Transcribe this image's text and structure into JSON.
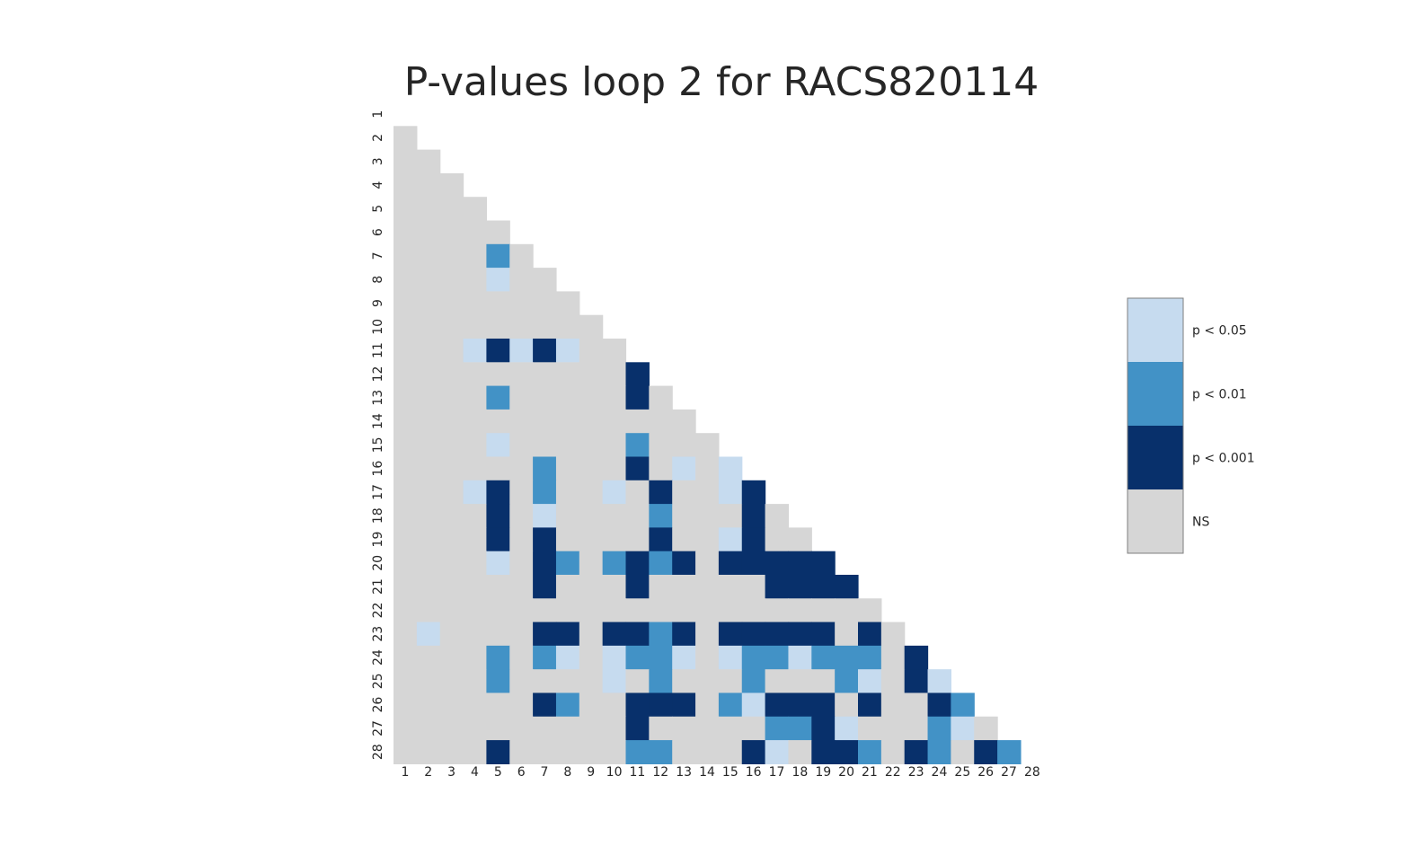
{
  "chart_data": {
    "type": "heatmap",
    "title": "P-values loop 2 for RACS820114",
    "xlabel": "",
    "ylabel": "",
    "x_tick_labels": [
      "1",
      "2",
      "3",
      "4",
      "5",
      "6",
      "7",
      "8",
      "9",
      "10",
      "11",
      "12",
      "13",
      "14",
      "15",
      "16",
      "17",
      "18",
      "19",
      "20",
      "21",
      "22",
      "23",
      "24",
      "25",
      "26",
      "27",
      "28"
    ],
    "y_tick_labels": [
      "1",
      "2",
      "3",
      "4",
      "5",
      "6",
      "7",
      "8",
      "9",
      "10",
      "11",
      "12",
      "13",
      "14",
      "15",
      "16",
      "17",
      "18",
      "19",
      "20",
      "21",
      "22",
      "23",
      "24",
      "25",
      "26",
      "27",
      "28"
    ],
    "mask": "lower-triangle (row > column), diagonal and upper triangle empty",
    "grid": false,
    "categories": [
      {
        "code": 0,
        "label": "NS",
        "color": "#d6d6d6"
      },
      {
        "code": 1,
        "label": "p < 0.001",
        "color": "#08306b"
      },
      {
        "code": 2,
        "label": "p < 0.01",
        "color": "#4292c6"
      },
      {
        "code": 3,
        "label": "p < 0.05",
        "color": "#c6dbef"
      }
    ],
    "legend": {
      "placement": "right",
      "entries": [
        "p < 0.05",
        "p < 0.01",
        "p < 0.001",
        "NS"
      ]
    },
    "cells": [
      [
        7,
        5,
        2
      ],
      [
        8,
        5,
        3
      ],
      [
        11,
        4,
        3
      ],
      [
        11,
        5,
        1
      ],
      [
        11,
        6,
        3
      ],
      [
        11,
        7,
        1
      ],
      [
        11,
        8,
        3
      ],
      [
        12,
        11,
        1
      ],
      [
        13,
        5,
        2
      ],
      [
        13,
        11,
        1
      ],
      [
        15,
        5,
        3
      ],
      [
        15,
        11,
        2
      ],
      [
        16,
        7,
        2
      ],
      [
        16,
        11,
        1
      ],
      [
        16,
        13,
        3
      ],
      [
        16,
        15,
        3
      ],
      [
        17,
        4,
        3
      ],
      [
        17,
        5,
        1
      ],
      [
        17,
        7,
        2
      ],
      [
        17,
        10,
        3
      ],
      [
        17,
        12,
        1
      ],
      [
        17,
        15,
        3
      ],
      [
        17,
        16,
        1
      ],
      [
        18,
        5,
        1
      ],
      [
        18,
        7,
        3
      ],
      [
        18,
        12,
        2
      ],
      [
        18,
        16,
        1
      ],
      [
        19,
        5,
        1
      ],
      [
        19,
        7,
        1
      ],
      [
        19,
        12,
        1
      ],
      [
        19,
        15,
        3
      ],
      [
        19,
        16,
        1
      ],
      [
        20,
        5,
        3
      ],
      [
        20,
        7,
        1
      ],
      [
        20,
        8,
        2
      ],
      [
        20,
        10,
        2
      ],
      [
        20,
        11,
        1
      ],
      [
        20,
        12,
        2
      ],
      [
        20,
        13,
        1
      ],
      [
        20,
        15,
        1
      ],
      [
        20,
        16,
        1
      ],
      [
        20,
        17,
        1
      ],
      [
        20,
        18,
        1
      ],
      [
        20,
        19,
        1
      ],
      [
        21,
        7,
        1
      ],
      [
        21,
        11,
        1
      ],
      [
        21,
        17,
        1
      ],
      [
        21,
        18,
        1
      ],
      [
        21,
        19,
        1
      ],
      [
        21,
        20,
        1
      ],
      [
        23,
        2,
        3
      ],
      [
        23,
        7,
        1
      ],
      [
        23,
        8,
        1
      ],
      [
        23,
        10,
        1
      ],
      [
        23,
        11,
        1
      ],
      [
        23,
        12,
        2
      ],
      [
        23,
        13,
        1
      ],
      [
        23,
        15,
        1
      ],
      [
        23,
        16,
        1
      ],
      [
        23,
        17,
        1
      ],
      [
        23,
        18,
        1
      ],
      [
        23,
        19,
        1
      ],
      [
        23,
        21,
        1
      ],
      [
        24,
        5,
        2
      ],
      [
        24,
        7,
        2
      ],
      [
        24,
        8,
        3
      ],
      [
        24,
        10,
        3
      ],
      [
        24,
        11,
        2
      ],
      [
        24,
        12,
        2
      ],
      [
        24,
        13,
        3
      ],
      [
        24,
        15,
        3
      ],
      [
        24,
        16,
        2
      ],
      [
        24,
        17,
        2
      ],
      [
        24,
        18,
        3
      ],
      [
        24,
        19,
        2
      ],
      [
        24,
        20,
        2
      ],
      [
        24,
        21,
        2
      ],
      [
        24,
        23,
        1
      ],
      [
        25,
        5,
        2
      ],
      [
        25,
        10,
        3
      ],
      [
        25,
        12,
        2
      ],
      [
        25,
        16,
        2
      ],
      [
        25,
        20,
        2
      ],
      [
        25,
        21,
        3
      ],
      [
        25,
        23,
        1
      ],
      [
        25,
        24,
        3
      ],
      [
        26,
        7,
        1
      ],
      [
        26,
        8,
        2
      ],
      [
        26,
        11,
        1
      ],
      [
        26,
        12,
        1
      ],
      [
        26,
        13,
        1
      ],
      [
        26,
        15,
        2
      ],
      [
        26,
        16,
        3
      ],
      [
        26,
        17,
        1
      ],
      [
        26,
        18,
        1
      ],
      [
        26,
        19,
        1
      ],
      [
        26,
        21,
        1
      ],
      [
        26,
        24,
        1
      ],
      [
        26,
        25,
        2
      ],
      [
        27,
        11,
        1
      ],
      [
        27,
        17,
        2
      ],
      [
        27,
        18,
        2
      ],
      [
        27,
        19,
        1
      ],
      [
        27,
        20,
        3
      ],
      [
        27,
        24,
        2
      ],
      [
        27,
        25,
        3
      ],
      [
        28,
        5,
        1
      ],
      [
        28,
        11,
        2
      ],
      [
        28,
        12,
        2
      ],
      [
        28,
        16,
        1
      ],
      [
        28,
        17,
        3
      ],
      [
        28,
        19,
        1
      ],
      [
        28,
        20,
        1
      ],
      [
        28,
        21,
        2
      ],
      [
        28,
        23,
        1
      ],
      [
        28,
        24,
        2
      ],
      [
        28,
        26,
        1
      ],
      [
        28,
        27,
        2
      ]
    ]
  }
}
